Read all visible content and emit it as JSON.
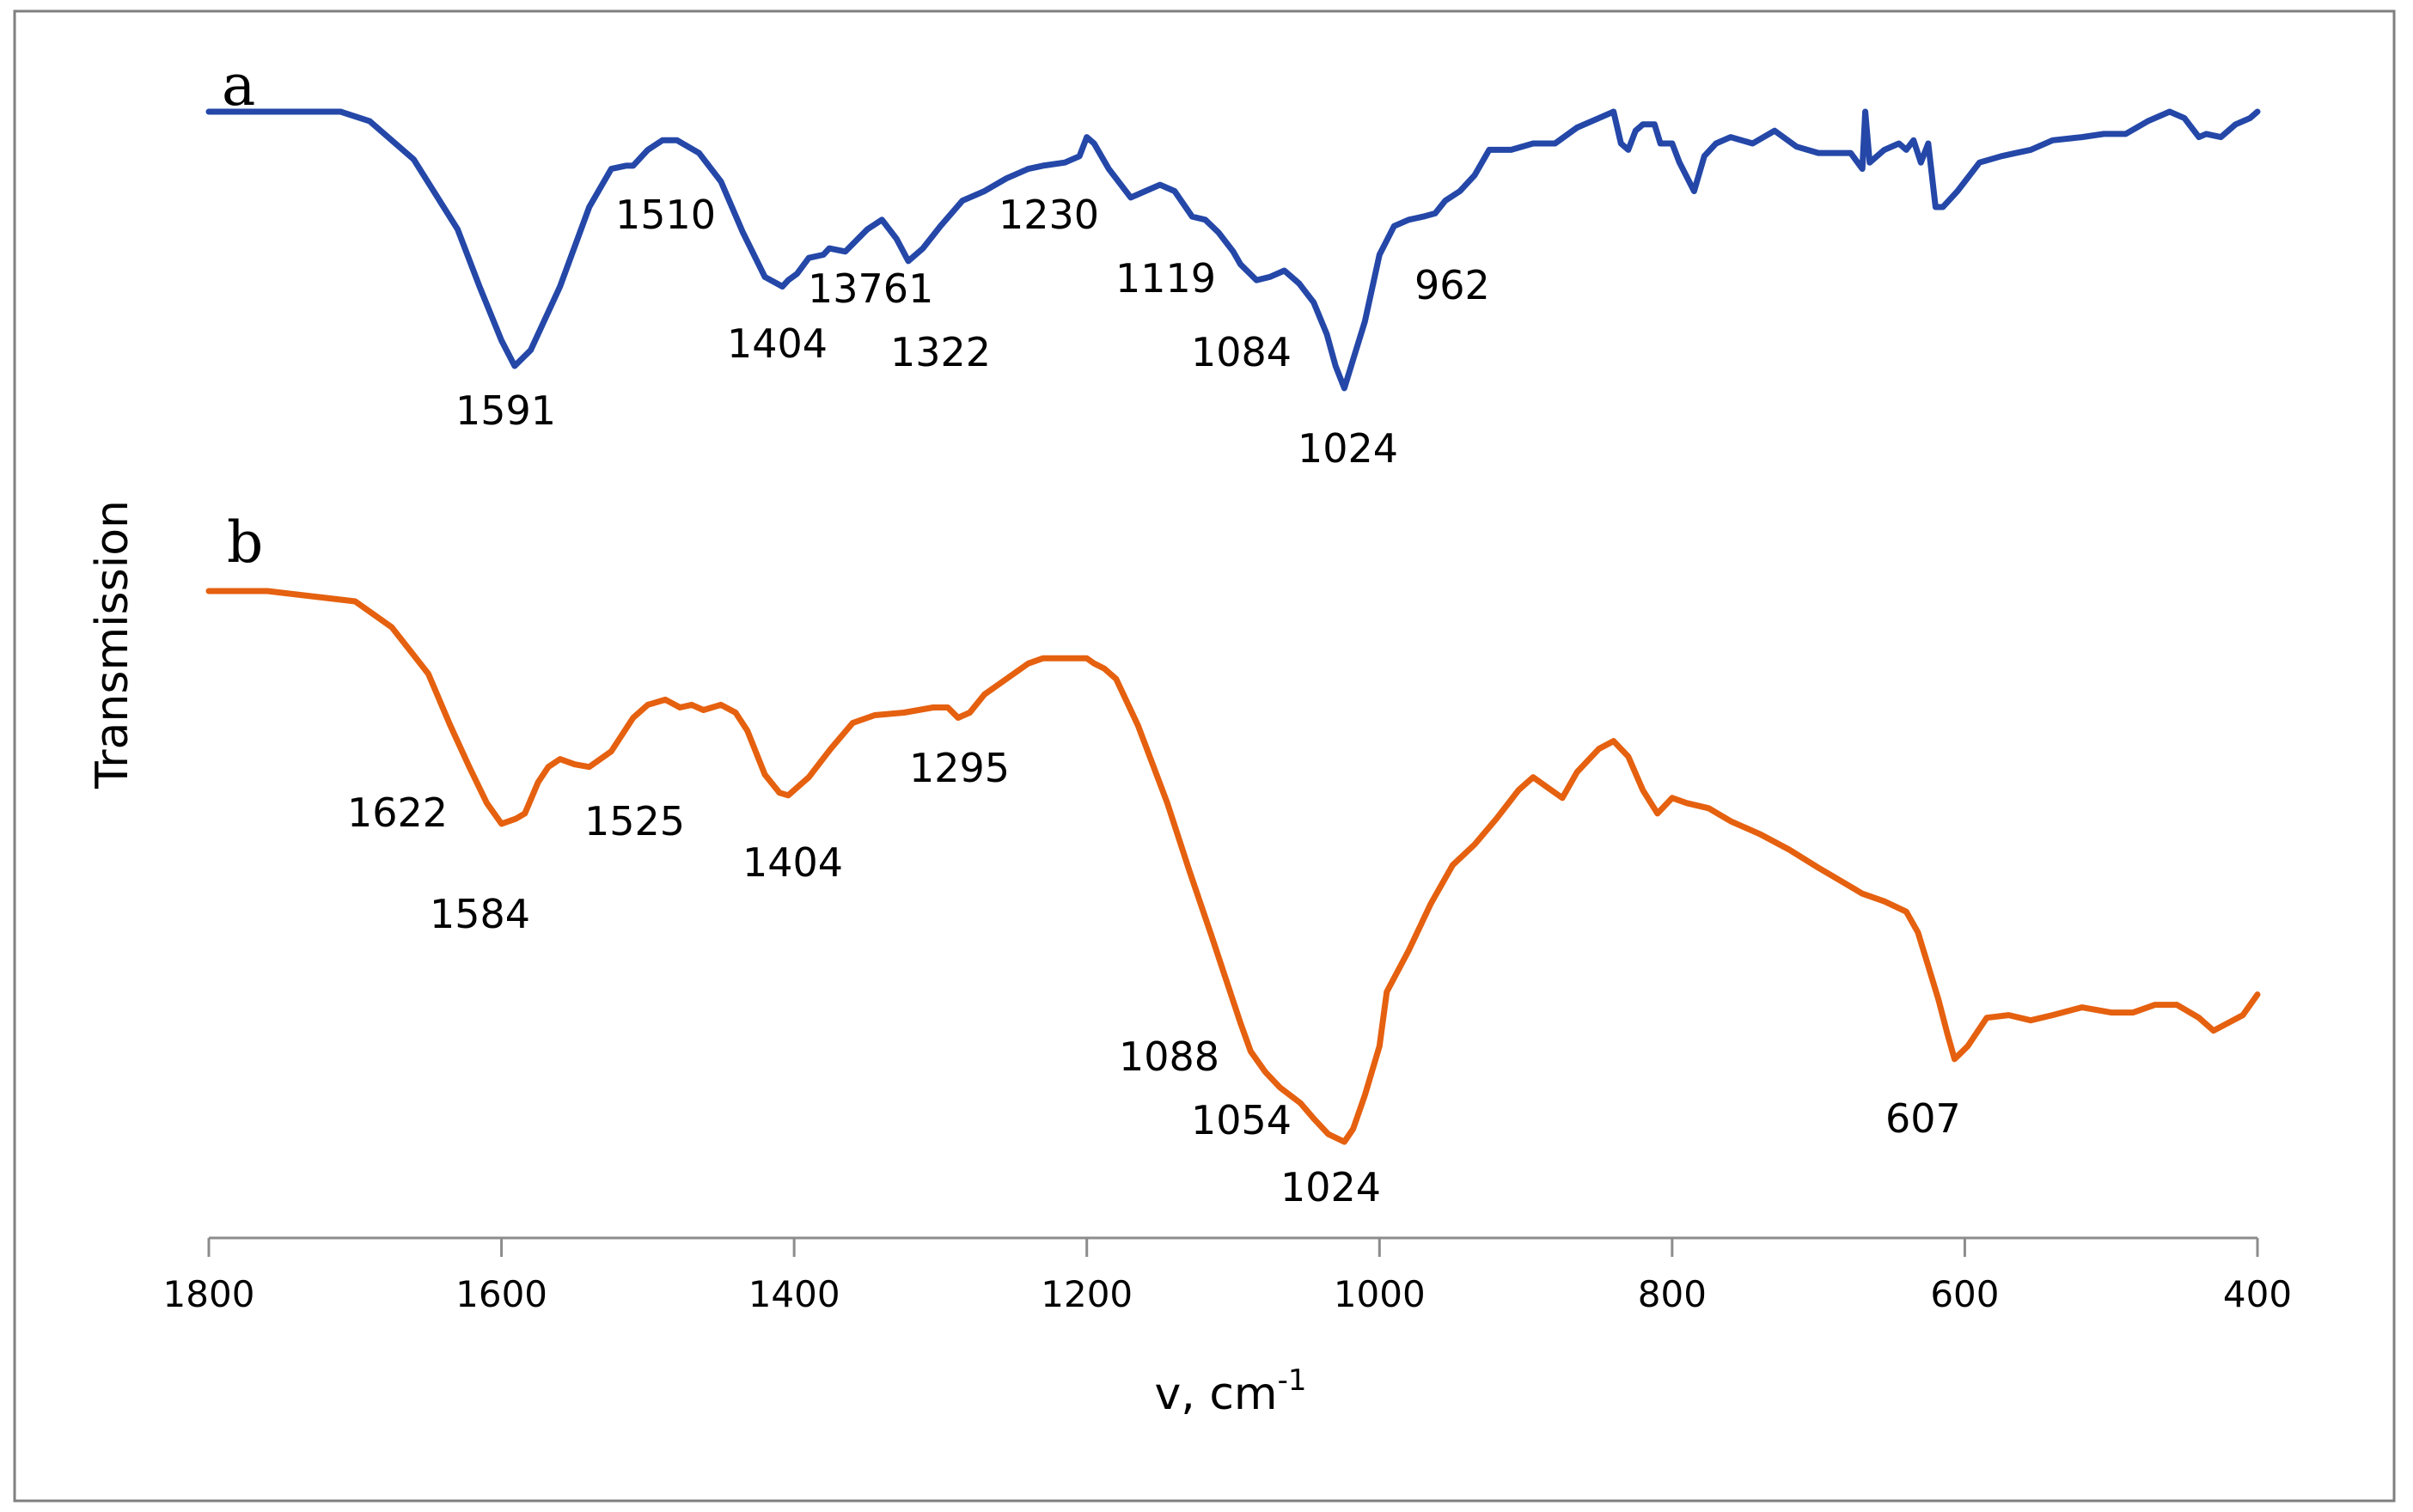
{
  "chart_data": {
    "type": "line",
    "title": "",
    "xlabel": "v, cm",
    "xlabel_superscript": "-1",
    "ylabel": "Transmission",
    "xlim": [
      1800,
      400
    ],
    "xticks": [
      "1800",
      "1600",
      "1400",
      "1200",
      "1000",
      "800",
      "600",
      "400"
    ],
    "grid": false,
    "series": [
      {
        "name": "a",
        "color": "#2447a8",
        "x": [
          1800,
          1710,
          1690,
          1660,
          1630,
          1615,
          1600,
          1591,
          1580,
          1560,
          1540,
          1525,
          1515,
          1510,
          1500,
          1490,
          1480,
          1465,
          1450,
          1435,
          1420,
          1408,
          1404,
          1398,
          1390,
          1380,
          1376,
          1365,
          1350,
          1340,
          1330,
          1322,
          1312,
          1300,
          1285,
          1270,
          1255,
          1240,
          1230,
          1215,
          1205,
          1200,
          1195,
          1185,
          1170,
          1160,
          1150,
          1140,
          1128,
          1119,
          1110,
          1100,
          1095,
          1084,
          1075,
          1065,
          1055,
          1045,
          1036,
          1030,
          1024,
          1018,
          1010,
          1000,
          990,
          980,
          970,
          962,
          955,
          945,
          935,
          925,
          910,
          895,
          880,
          865,
          850,
          840,
          835,
          830,
          825,
          820,
          812,
          808,
          800,
          795,
          785,
          778,
          770,
          760,
          745,
          730,
          715,
          700,
          690,
          678,
          670,
          668,
          665,
          655,
          645,
          640,
          635,
          630,
          625,
          620,
          615,
          605,
          590,
          575,
          565,
          555,
          540,
          520,
          505,
          490,
          475,
          460,
          450,
          445,
          440,
          435,
          425,
          415,
          405,
          400
        ],
        "y": [
          0.0,
          0.0,
          0.03,
          0.15,
          0.37,
          0.55,
          0.72,
          0.8,
          0.75,
          0.55,
          0.3,
          0.18,
          0.17,
          0.17,
          0.12,
          0.09,
          0.09,
          0.13,
          0.22,
          0.38,
          0.52,
          0.55,
          0.53,
          0.51,
          0.46,
          0.45,
          0.43,
          0.44,
          0.37,
          0.34,
          0.4,
          0.47,
          0.43,
          0.36,
          0.28,
          0.25,
          0.21,
          0.18,
          0.17,
          0.16,
          0.14,
          0.08,
          0.1,
          0.18,
          0.27,
          0.25,
          0.23,
          0.25,
          0.33,
          0.34,
          0.38,
          0.44,
          0.48,
          0.53,
          0.52,
          0.5,
          0.54,
          0.6,
          0.7,
          0.8,
          0.87,
          0.78,
          0.66,
          0.45,
          0.36,
          0.34,
          0.33,
          0.32,
          0.28,
          0.25,
          0.2,
          0.12,
          0.12,
          0.1,
          0.1,
          0.05,
          0.02,
          0.0,
          0.1,
          0.12,
          0.06,
          0.04,
          0.04,
          0.1,
          0.1,
          0.16,
          0.25,
          0.14,
          0.1,
          0.08,
          0.1,
          0.06,
          0.11,
          0.13,
          0.13,
          0.13,
          0.18,
          0.0,
          0.16,
          0.12,
          0.1,
          0.12,
          0.09,
          0.16,
          0.1,
          0.3,
          0.3,
          0.25,
          0.16,
          0.14,
          0.13,
          0.12,
          0.09,
          0.08,
          0.07,
          0.07,
          0.03,
          0.0,
          0.02,
          0.05,
          0.08,
          0.07,
          0.08,
          0.04,
          0.02,
          0.0
        ]
      },
      {
        "name": "b",
        "color": "#e5600f",
        "x": [
          1800,
          1760,
          1730,
          1700,
          1675,
          1650,
          1635,
          1622,
          1610,
          1600,
          1590,
          1584,
          1575,
          1568,
          1560,
          1550,
          1540,
          1525,
          1510,
          1500,
          1488,
          1478,
          1470,
          1462,
          1450,
          1440,
          1432,
          1420,
          1410,
          1404,
          1398,
          1390,
          1375,
          1360,
          1345,
          1325,
          1305,
          1295,
          1288,
          1280,
          1270,
          1255,
          1240,
          1230,
          1220,
          1210,
          1200,
          1195,
          1188,
          1180,
          1165,
          1145,
          1130,
          1115,
          1105,
          1095,
          1088,
          1078,
          1068,
          1054,
          1045,
          1035,
          1024,
          1018,
          1010,
          1000,
          995,
          980,
          965,
          950,
          935,
          920,
          905,
          895,
          885,
          875,
          865,
          850,
          840,
          830,
          820,
          810,
          800,
          790,
          775,
          760,
          740,
          720,
          700,
          685,
          670,
          655,
          640,
          632,
          625,
          618,
          612,
          607,
          598,
          585,
          570,
          555,
          540,
          520,
          500,
          485,
          470,
          455,
          440,
          430,
          420,
          410,
          400
        ],
        "y": [
          0.0,
          0.0,
          0.02,
          0.04,
          0.14,
          0.32,
          0.52,
          0.68,
          0.82,
          0.9,
          0.88,
          0.86,
          0.74,
          0.68,
          0.65,
          0.67,
          0.68,
          0.62,
          0.49,
          0.44,
          0.42,
          0.45,
          0.44,
          0.46,
          0.44,
          0.47,
          0.54,
          0.71,
          0.78,
          0.79,
          0.76,
          0.72,
          0.61,
          0.51,
          0.48,
          0.47,
          0.45,
          0.45,
          0.49,
          0.47,
          0.4,
          0.34,
          0.28,
          0.26,
          0.26,
          0.26,
          0.26,
          0.28,
          0.3,
          0.34,
          0.52,
          0.82,
          1.08,
          1.33,
          1.5,
          1.67,
          1.78,
          1.86,
          1.92,
          1.98,
          2.04,
          2.1,
          2.13,
          2.08,
          1.95,
          1.76,
          1.55,
          1.39,
          1.21,
          1.06,
          0.98,
          0.88,
          0.77,
          0.72,
          0.76,
          0.8,
          0.7,
          0.61,
          0.58,
          0.64,
          0.77,
          0.86,
          0.8,
          0.82,
          0.84,
          0.89,
          0.94,
          1.0,
          1.07,
          1.12,
          1.17,
          1.2,
          1.24,
          1.32,
          1.45,
          1.58,
          1.71,
          1.81,
          1.76,
          1.65,
          1.64,
          1.66,
          1.64,
          1.61,
          1.63,
          1.63,
          1.6,
          1.6,
          1.65,
          1.7,
          1.67,
          1.64,
          1.56
        ]
      }
    ],
    "panel_labels": [
      "a",
      "b"
    ],
    "peak_labels_a": [
      "1591",
      "1510",
      "1404",
      "13761",
      "1322",
      "1230",
      "1119",
      "1084",
      "1024",
      "962"
    ],
    "peak_labels_b": [
      "1622",
      "1584",
      "1525",
      "1404",
      "1295",
      "1088",
      "1054",
      "1024",
      "607"
    ]
  }
}
